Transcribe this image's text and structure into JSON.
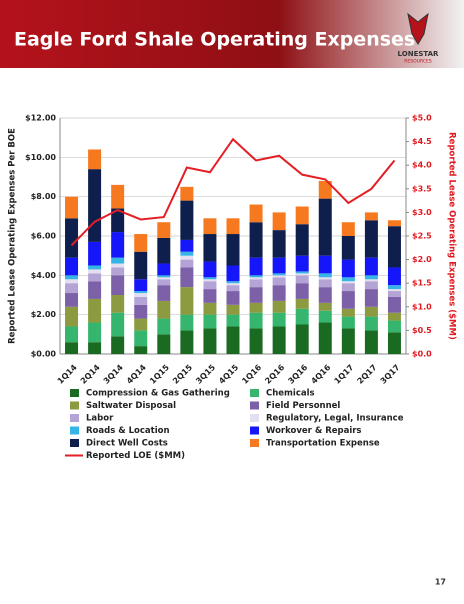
{
  "logo": {
    "name": "LONESTAR",
    "sub": "RESOURCES"
  },
  "page_number": "17",
  "chart_data": {
    "type": "bar",
    "stacked": true,
    "title": "Eagle Ford Shale Operating Expenses",
    "y_label": "Reported Lease Operating Expenses Per BOE",
    "y2_label": "Reported Lease Operating Expenses  ($MM)",
    "categories": [
      "1Q14",
      "2Q14",
      "3Q14",
      "4Q14",
      "1Q15",
      "2Q15",
      "3Q15",
      "4Q15",
      "1Q16",
      "2Q16",
      "3Q16",
      "4Q16",
      "1Q17",
      "2Q17",
      "3Q17"
    ],
    "ylim": [
      0,
      12
    ],
    "yticks": [
      {
        "value": 0,
        "label": "$0.00"
      },
      {
        "value": 2,
        "label": "$2.00"
      },
      {
        "value": 4,
        "label": "$4.00"
      },
      {
        "value": 6,
        "label": "$6.00"
      },
      {
        "value": 8,
        "label": "$8.00"
      },
      {
        "value": 10,
        "label": "$10.00"
      },
      {
        "value": 12,
        "label": "$12.00"
      }
    ],
    "y2lim": [
      0,
      5
    ],
    "y2ticks": [
      {
        "value": 0,
        "label": "$0.0"
      },
      {
        "value": 0.5,
        "label": "$0.5"
      },
      {
        "value": 1,
        "label": "$1.0"
      },
      {
        "value": 1.5,
        "label": "$1.5"
      },
      {
        "value": 2,
        "label": "$2.0"
      },
      {
        "value": 2.5,
        "label": "$2.5"
      },
      {
        "value": 3,
        "label": "$3.0"
      },
      {
        "value": 3.5,
        "label": "$3.5"
      },
      {
        "value": 4,
        "label": "$4.0"
      },
      {
        "value": 4.5,
        "label": "$4.5"
      },
      {
        "value": 5,
        "label": "$5.0"
      }
    ],
    "grid": true,
    "series": [
      {
        "name": "Compression & Gas Gathering",
        "color": "#1b6a21",
        "values": [
          0.6,
          0.6,
          0.9,
          0.4,
          1.0,
          1.2,
          1.3,
          1.4,
          1.3,
          1.4,
          1.5,
          1.6,
          1.3,
          1.2,
          1.1
        ]
      },
      {
        "name": "Chemicals",
        "color": "#35b56e",
        "values": [
          0.8,
          1.0,
          1.2,
          0.8,
          0.8,
          0.8,
          0.7,
          0.6,
          0.8,
          0.7,
          0.8,
          0.6,
          0.6,
          0.7,
          0.6
        ]
      },
      {
        "name": "Saltwater Disposal",
        "color": "#8c9a40",
        "values": [
          1.0,
          1.2,
          0.9,
          0.6,
          0.9,
          1.4,
          0.6,
          0.5,
          0.5,
          0.6,
          0.5,
          0.4,
          0.4,
          0.5,
          0.4
        ]
      },
      {
        "name": "Field Personnel",
        "color": "#7c60a8",
        "values": [
          0.7,
          0.9,
          1.0,
          0.7,
          0.8,
          1.0,
          0.7,
          0.7,
          0.8,
          0.8,
          0.8,
          0.8,
          0.9,
          0.9,
          0.8
        ]
      },
      {
        "name": "Labor",
        "color": "#b4a4d6",
        "values": [
          0.5,
          0.4,
          0.4,
          0.4,
          0.3,
          0.4,
          0.4,
          0.3,
          0.4,
          0.4,
          0.4,
          0.4,
          0.4,
          0.4,
          0.3
        ]
      },
      {
        "name": "Regulatory, Legal, Insurance",
        "color": "#e4dff0",
        "values": [
          0.2,
          0.2,
          0.2,
          0.2,
          0.1,
          0.2,
          0.1,
          0.1,
          0.1,
          0.1,
          0.1,
          0.1,
          0.1,
          0.1,
          0.1
        ]
      },
      {
        "name": "Roads & Location",
        "color": "#36b4e6",
        "values": [
          0.2,
          0.2,
          0.3,
          0.1,
          0.1,
          0.2,
          0.1,
          0.1,
          0.1,
          0.1,
          0.1,
          0.2,
          0.2,
          0.2,
          0.2
        ]
      },
      {
        "name": "Workover & Repairs",
        "color": "#1616fa",
        "values": [
          0.9,
          1.2,
          1.3,
          0.6,
          0.6,
          0.6,
          0.8,
          0.8,
          0.9,
          0.8,
          0.8,
          0.9,
          0.9,
          0.9,
          0.9
        ]
      },
      {
        "name": "Direct Well Costs",
        "color": "#0e1f4e",
        "values": [
          2.0,
          3.7,
          1.2,
          1.4,
          1.3,
          2.0,
          1.4,
          1.6,
          1.8,
          1.4,
          1.6,
          2.9,
          1.2,
          1.9,
          2.1
        ]
      },
      {
        "name": "Transportation Expense",
        "color": "#f7791f",
        "values": [
          1.1,
          1.0,
          1.2,
          0.9,
          0.8,
          0.7,
          0.8,
          0.8,
          0.9,
          0.9,
          0.9,
          0.9,
          0.7,
          0.4,
          0.3
        ]
      },
      {
        "name": "Reported LOE ($MM)",
        "color": "#e31e24",
        "type": "line",
        "axis": "y2",
        "values": [
          2.3,
          2.8,
          3.05,
          2.85,
          2.9,
          3.95,
          3.85,
          4.55,
          4.1,
          4.2,
          3.8,
          3.7,
          3.2,
          3.5,
          4.1
        ]
      }
    ]
  }
}
